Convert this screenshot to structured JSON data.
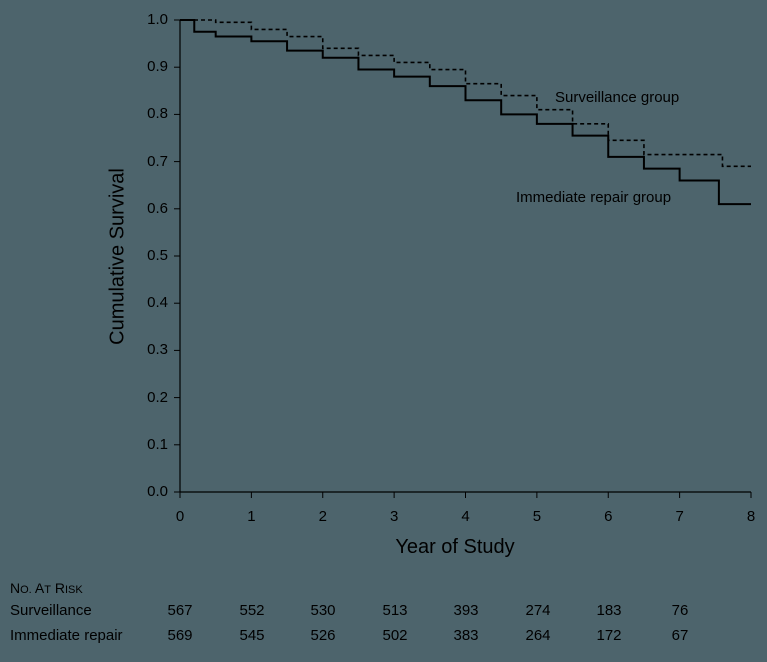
{
  "chart_data": {
    "type": "line",
    "subtype": "kaplan-meier step",
    "title": "",
    "xlabel": "Year of Study",
    "ylabel": "Cumulative Survival",
    "xlim": [
      0,
      8
    ],
    "ylim": [
      0.0,
      1.0
    ],
    "x_ticks": [
      "0",
      "1",
      "2",
      "3",
      "4",
      "5",
      "6",
      "7",
      "8"
    ],
    "y_ticks": [
      "0.0",
      "0.1",
      "0.2",
      "0.3",
      "0.4",
      "0.5",
      "0.6",
      "0.7",
      "0.8",
      "0.9",
      "1.0"
    ],
    "grid": false,
    "series": [
      {
        "name": "Surveillance group",
        "line_style": "dashed",
        "x": [
          0,
          0.5,
          1,
          1.5,
          2,
          2.5,
          3,
          3.5,
          4,
          4.5,
          5,
          5.5,
          6,
          6.5,
          7,
          7.5,
          7.6,
          8
        ],
        "y": [
          1.0,
          0.995,
          0.98,
          0.965,
          0.94,
          0.925,
          0.91,
          0.895,
          0.865,
          0.84,
          0.81,
          0.78,
          0.745,
          0.715,
          0.715,
          0.715,
          0.69,
          0.69
        ]
      },
      {
        "name": "Immediate repair group",
        "line_style": "solid",
        "x": [
          0,
          0.2,
          0.5,
          1,
          1.5,
          2,
          2.5,
          3,
          3.5,
          4,
          4.5,
          5,
          5.5,
          6,
          6.5,
          7,
          7.5,
          7.55,
          8
        ],
        "y": [
          1.0,
          0.975,
          0.965,
          0.955,
          0.935,
          0.92,
          0.895,
          0.88,
          0.86,
          0.83,
          0.8,
          0.78,
          0.755,
          0.71,
          0.685,
          0.66,
          0.66,
          0.61,
          0.61
        ]
      }
    ],
    "annotations": [
      {
        "text": "Surveillance group",
        "x": 5.3,
        "y": 0.79
      },
      {
        "text": "Immediate repair group",
        "x": 4.7,
        "y": 0.62
      }
    ],
    "at_risk_table": {
      "title": "No. at Risk",
      "columns": [
        "0",
        "1",
        "2",
        "3",
        "4",
        "5",
        "6",
        "7"
      ],
      "rows": [
        {
          "label": "Surveillance",
          "values": [
            567,
            552,
            530,
            513,
            393,
            274,
            183,
            76
          ]
        },
        {
          "label": "Immediate repair",
          "values": [
            569,
            545,
            526,
            502,
            383,
            264,
            172,
            67
          ]
        }
      ]
    }
  },
  "labels": {
    "ylabel": "Cumulative Survival",
    "xlabel": "Year of Study",
    "surveillance_annot": "Surveillance group",
    "repair_annot": "Immediate repair group",
    "risk_title_N": "N",
    "risk_title_o": "O.",
    "risk_title_A": " A",
    "risk_title_t": "T",
    "risk_title_R": " R",
    "risk_title_isk": "ISK",
    "row1_label": "Surveillance",
    "row2_label": "Immediate repair"
  },
  "style": {
    "background": "#4d646c",
    "line_color": "#000000"
  }
}
